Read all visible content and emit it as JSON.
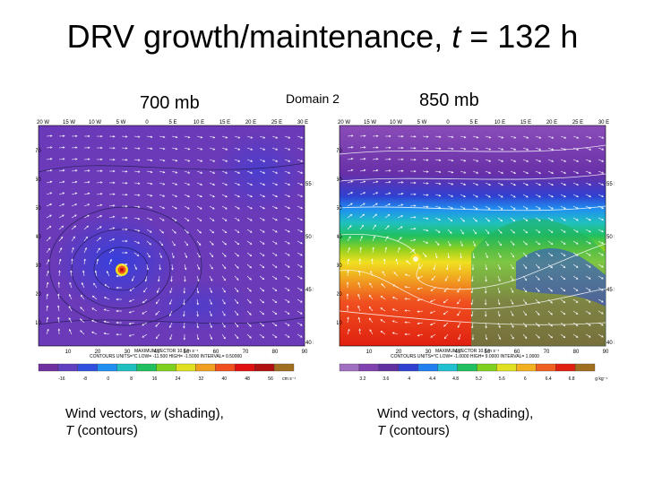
{
  "title": {
    "prefix": "DRV growth/maintenance, ",
    "var": "t",
    "suffix": " = 132 h"
  },
  "domain_label": "Domain 2",
  "left_panel": {
    "level_label": "700 mb",
    "top_ticks": [
      "20 W",
      "15 W",
      "10 W",
      "5 W",
      "0",
      "5 E",
      "10 E",
      "15 E",
      "20 E",
      "25 E",
      "30 E"
    ],
    "left_ticks": [
      "70",
      "60",
      "50",
      "40",
      "30",
      "20",
      "10"
    ],
    "right_ticks": [
      "55 N",
      "50 N",
      "45 N",
      "40 N"
    ],
    "bottom_ticks": [
      "10",
      "20",
      "30",
      "40",
      "50",
      "60",
      "70",
      "80",
      "90"
    ],
    "footer": "CONTOURS UNITS=°C LOW= -11.500 HIGH= -1.5000 INTERVAL= 0.50000",
    "max_vector": "MAXIMUM VECTOR 10.6 m s⁻¹",
    "colorbar_labels": [
      "-16",
      "-8",
      "0",
      "8",
      "16",
      "24",
      "32",
      "40",
      "48",
      "56"
    ],
    "colorbar_units": "cm s⁻¹",
    "colorbar_colors": [
      "#7030a0",
      "#6040c0",
      "#3050e0",
      "#2090f0",
      "#20c0c0",
      "#20c060",
      "#80d020",
      "#e0e020",
      "#f0a020",
      "#f05020",
      "#e01010",
      "#b01010",
      "#a07020"
    ],
    "caption_line1": {
      "prefix": "Wind vectors, ",
      "var": "w",
      "suffix": " (shading),"
    },
    "caption_line2": {
      "var": "T",
      "suffix": " (contours)"
    }
  },
  "right_panel": {
    "level_label": "850 mb",
    "top_ticks": [
      "20 W",
      "15 W",
      "10 W",
      "5 W",
      "0",
      "5 E",
      "10 E",
      "15 E",
      "20 E",
      "25 E",
      "30 E"
    ],
    "left_ticks": [
      "70",
      "60",
      "50",
      "40",
      "30",
      "20",
      "10"
    ],
    "right_ticks": [
      "55 N",
      "50 N",
      "45 N",
      "40 N"
    ],
    "bottom_ticks": [
      "10",
      "20",
      "30",
      "40",
      "50",
      "60",
      "70",
      "80",
      "90"
    ],
    "footer": "CONTOURS UNITS=°C LOW= -1.0000 HIGH= 9.0000 INTERVAL= 1.0000",
    "max_vector": "MAXIMUM VECTOR 10.6 m s⁻¹",
    "colorbar_labels": [
      "3.2",
      "3.6",
      "4",
      "4.4",
      "4.8",
      "5.2",
      "5.6",
      "6",
      "6.4",
      "6.8"
    ],
    "colorbar_units": "g kg⁻¹",
    "colorbar_colors": [
      "#a070c0",
      "#8040b0",
      "#6030a0",
      "#3040d0",
      "#2080f0",
      "#20c0d0",
      "#20c060",
      "#80d020",
      "#e0e020",
      "#f0b020",
      "#f06020",
      "#e02010",
      "#a07020"
    ],
    "caption_line1": {
      "prefix": "Wind vectors, ",
      "var": "q",
      "suffix": " (shading),"
    },
    "caption_line2": {
      "var": "T",
      "suffix": " (contours)"
    }
  }
}
